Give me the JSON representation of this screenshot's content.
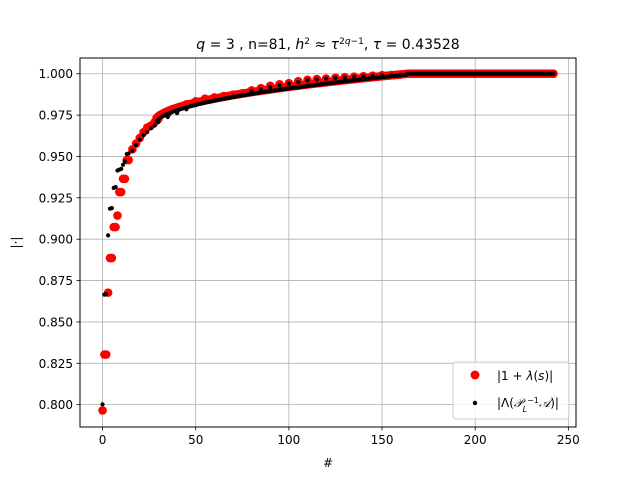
{
  "chart_data": {
    "type": "scatter",
    "title": "q = 3 , n=81, h² ≈ τ^(2q−1), τ = 0.43528",
    "xlabel": "#",
    "ylabel": "|·|",
    "xlim": [
      -12.1,
      254.1
    ],
    "ylim": [
      0.7865,
      1.0095
    ],
    "xticks": [
      0,
      50,
      100,
      150,
      200,
      250
    ],
    "yticks": [
      0.8,
      0.825,
      0.85,
      0.875,
      0.9,
      0.925,
      0.95,
      0.975,
      1.0
    ],
    "xtick_labels": [
      "0",
      "50",
      "100",
      "150",
      "200",
      "250"
    ],
    "ytick_labels": [
      "0.800",
      "0.825",
      "0.850",
      "0.875",
      "0.900",
      "0.925",
      "0.950",
      "0.975",
      "1.000"
    ],
    "grid": true,
    "legend_position": "lower-right",
    "n_points": 243,
    "series": [
      {
        "name": "|1 + λ(s)|",
        "marker": "large-dot",
        "color": "#ff0000",
        "points": [
          [
            0,
            0.7965
          ],
          [
            1,
            0.8303
          ],
          [
            2,
            0.8303
          ],
          [
            3,
            0.8677
          ],
          [
            4,
            0.8886
          ],
          [
            5,
            0.8886
          ],
          [
            6,
            0.9073
          ],
          [
            7,
            0.9073
          ],
          [
            8,
            0.9143
          ],
          [
            9,
            0.9285
          ],
          [
            10,
            0.9285
          ],
          [
            11,
            0.9365
          ],
          [
            12,
            0.9365
          ],
          [
            13,
            0.9478
          ],
          [
            14,
            0.9478
          ],
          [
            16,
            0.9543
          ],
          [
            18,
            0.9578
          ],
          [
            20,
            0.9612
          ],
          [
            22,
            0.9647
          ],
          [
            24,
            0.9675
          ],
          [
            26,
            0.9687
          ],
          [
            28,
            0.9708
          ],
          [
            30,
            0.9727
          ],
          [
            35,
            0.9762
          ],
          [
            40,
            0.9788
          ],
          [
            45,
            0.9815
          ],
          [
            50,
            0.9833
          ],
          [
            55,
            0.9849
          ],
          [
            60,
            0.9857
          ],
          [
            65,
            0.9865
          ],
          [
            70,
            0.9873
          ],
          [
            75,
            0.9882
          ],
          [
            80,
            0.9899
          ],
          [
            85,
            0.9913
          ],
          [
            90,
            0.9927
          ],
          [
            95,
            0.9936
          ],
          [
            100,
            0.9943
          ],
          [
            105,
            0.9955
          ],
          [
            110,
            0.9963
          ],
          [
            115,
            0.9968
          ],
          [
            120,
            0.9971
          ],
          [
            125,
            0.9976
          ],
          [
            130,
            0.9979
          ],
          [
            135,
            0.9982
          ],
          [
            140,
            0.9985
          ],
          [
            145,
            0.9988
          ],
          [
            150,
            0.9991
          ],
          [
            155,
            0.9993
          ],
          [
            160,
            0.9995
          ],
          [
            164,
            0.9999
          ],
          [
            170,
            1.0
          ],
          [
            180,
            1.0
          ],
          [
            190,
            1.0
          ],
          [
            200,
            1.0
          ],
          [
            210,
            1.0
          ],
          [
            220,
            1.0
          ],
          [
            230,
            1.0
          ],
          [
            242,
            1.0
          ]
        ],
        "fill_segments": [
          [
            28,
            163,
            0.9708,
            0.9999
          ],
          [
            164,
            242,
            1.0,
            1.0
          ]
        ]
      },
      {
        "name": "|Λ(P_L⁻¹A)|",
        "marker": "small-dot",
        "color": "#000000",
        "points": [
          [
            0,
            0.8002
          ],
          [
            1,
            0.8665
          ],
          [
            2,
            0.8668
          ],
          [
            3,
            0.9023
          ],
          [
            4,
            0.9185
          ],
          [
            5,
            0.9188
          ],
          [
            6,
            0.931
          ],
          [
            7,
            0.9315
          ],
          [
            8,
            0.9415
          ],
          [
            9,
            0.942
          ],
          [
            10,
            0.9425
          ],
          [
            11,
            0.945
          ],
          [
            12,
            0.947
          ],
          [
            13,
            0.9515
          ],
          [
            14,
            0.9518
          ],
          [
            16,
            0.9535
          ],
          [
            18,
            0.9568
          ],
          [
            20,
            0.9602
          ],
          [
            22,
            0.9628
          ],
          [
            24,
            0.9648
          ],
          [
            26,
            0.967
          ],
          [
            28,
            0.9688
          ],
          [
            30,
            0.9708
          ],
          [
            35,
            0.9738
          ],
          [
            40,
            0.9762
          ],
          [
            45,
            0.9785
          ],
          [
            50,
            0.981
          ],
          [
            55,
            0.9827
          ],
          [
            60,
            0.984
          ],
          [
            65,
            0.985
          ],
          [
            70,
            0.9862
          ],
          [
            75,
            0.9872
          ],
          [
            80,
            0.9895
          ],
          [
            85,
            0.9905
          ],
          [
            90,
            0.992
          ],
          [
            95,
            0.993
          ],
          [
            100,
            0.994
          ],
          [
            105,
            0.995
          ],
          [
            110,
            0.996
          ],
          [
            115,
            0.9965
          ],
          [
            120,
            0.997
          ],
          [
            125,
            0.9975
          ],
          [
            130,
            0.9978
          ],
          [
            135,
            0.9981
          ],
          [
            140,
            0.9984
          ],
          [
            145,
            0.9986
          ],
          [
            150,
            0.999
          ],
          [
            155,
            0.9992
          ],
          [
            160,
            0.9994
          ],
          [
            164,
            1.0
          ],
          [
            170,
            1.0
          ],
          [
            180,
            1.0
          ],
          [
            190,
            1.0
          ],
          [
            200,
            1.0
          ],
          [
            210,
            1.0
          ],
          [
            220,
            1.0
          ],
          [
            230,
            1.0
          ],
          [
            242,
            1.0
          ]
        ],
        "fill_segments": [
          [
            28,
            163,
            0.9688,
            0.9994
          ],
          [
            164,
            242,
            1.0,
            1.0
          ]
        ]
      }
    ]
  }
}
